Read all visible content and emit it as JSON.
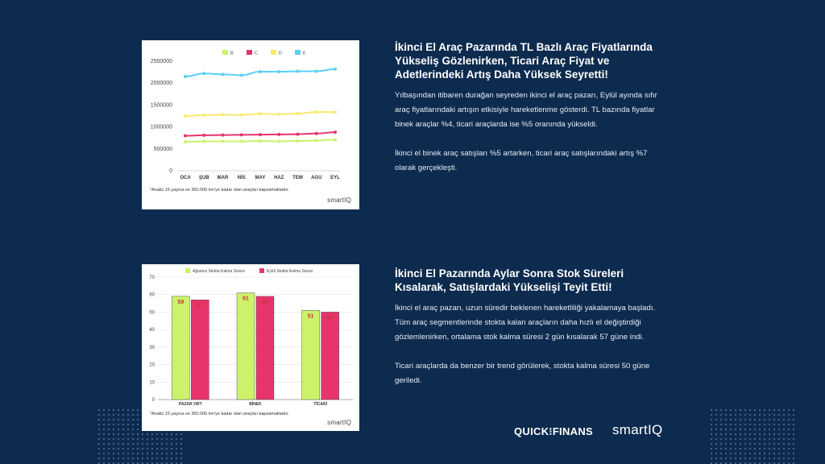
{
  "brands": {
    "quick": "QUICK⁝FINANS",
    "smart": "smartIQ"
  },
  "chart_data": [
    {
      "type": "line",
      "categories": [
        "OCA",
        "ŞUB",
        "MAR",
        "NİS",
        "MAY",
        "HAZ",
        "TEM",
        "AGU",
        "EYL"
      ],
      "series": [
        {
          "name": "B",
          "color": "#ccf26a",
          "values": [
            660000,
            670000,
            670000,
            670000,
            680000,
            670000,
            680000,
            690000,
            710000
          ]
        },
        {
          "name": "C",
          "color": "#e7356b",
          "values": [
            800000,
            810000,
            815000,
            820000,
            825000,
            830000,
            835000,
            850000,
            880000
          ]
        },
        {
          "name": "D",
          "color": "#f5ea6c",
          "values": [
            1250000,
            1270000,
            1280000,
            1275000,
            1300000,
            1290000,
            1305000,
            1340000,
            1340000
          ]
        },
        {
          "name": "E",
          "color": "#5ccff5",
          "values": [
            2150000,
            2220000,
            2200000,
            2180000,
            2260000,
            2260000,
            2270000,
            2270000,
            2320000
          ]
        }
      ],
      "yticks": [
        "0",
        "500000",
        "1000000",
        "1500000",
        "2000000",
        "2500000"
      ],
      "ylim": [
        0,
        2500000
      ],
      "legend": "top",
      "grid": false,
      "footnote": "*Analiz 15 yaşına ve 350.000 km'ye kadar olan araçları kapsamaktadır.",
      "logo": "smartIQ"
    },
    {
      "type": "bar",
      "categories": [
        "PAZAR ORT",
        "BİNEK",
        "TİCARİ"
      ],
      "series": [
        {
          "name": "Ağustos Stokta Kalma Süresi",
          "color": "#ccf26a",
          "values": [
            59,
            61,
            51
          ]
        },
        {
          "name": "Eylül Stokta Kalma Süresi",
          "color": "#e7356b",
          "values": [
            57,
            59,
            50
          ]
        }
      ],
      "yticks": [
        "0",
        "10",
        "20",
        "30",
        "40",
        "50",
        "60",
        "70"
      ],
      "ylim": [
        0,
        70
      ],
      "legend": "top",
      "grid": true,
      "label_color": "#c8323a",
      "footnote": "*Analiz 15 yaşına ve 350.000 km'ye kadar olan araçları kapsamaktadır.",
      "logo": "smartIQ"
    }
  ],
  "sections": [
    {
      "heading": "İkinci El Araç Pazarında TL Bazlı Araç Fiyatlarında\nYükseliş Gözlenirken, Ticari Araç Fiyat ve\nAdetlerindeki Artış Daha Yüksek Seyretti!",
      "paragraphs": [
        "Yılbaşından itibaren durağan seyreden ikinci el araç pazarı, Eylül ayında sıfır\naraç fiyatlarındaki artışın etkisiyle hareketlenme gösterdi. TL bazında fiyatlar\nbinek araçlar %4, ticari araçlarda ise %5 oranında yükseldi.",
        "İkinci el binek araç satışları %5 artarken, ticari araç satışlarındaki artış %7\nolarak gerçekleşti."
      ]
    },
    {
      "heading": "İkinci El Pazarında Aylar Sonra Stok Süreleri\nKısalarak, Satışlardaki Yükselişi Teyit Etti!",
      "paragraphs": [
        "İkinci el araç pazarı, uzun süredir beklenen hareketliliği yakalamaya başladı.\nTüm araç segmentlerinde stokta kalan araçların daha hızlı el değiştirdiği\ngözlemlenirken, ortalama stok kalma süresi 2 gün kısalarak 57 güne indi.",
        "Ticari araçlarda da benzer bir trend görülerek, stokta kalma süresi 50 güne\ngeriledi."
      ]
    }
  ]
}
